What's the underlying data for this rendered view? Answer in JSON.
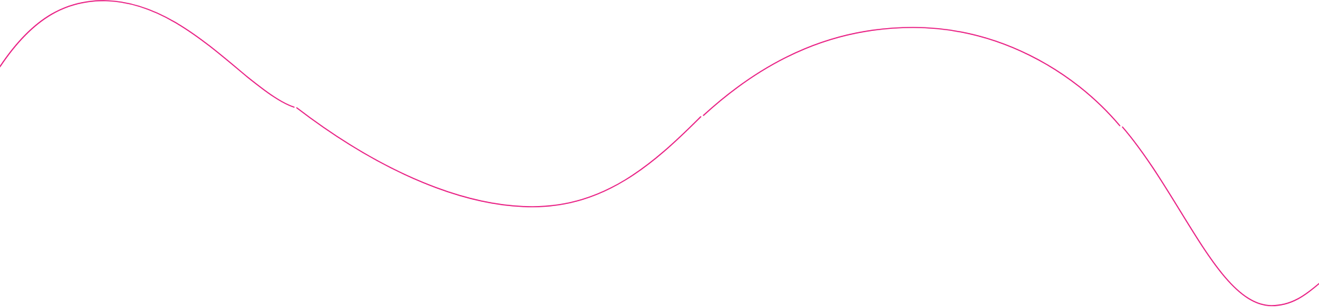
{
  "decoration": {
    "type": "wavy-line",
    "stroke_color": "#e8177f",
    "background_color": "#ffffff"
  }
}
